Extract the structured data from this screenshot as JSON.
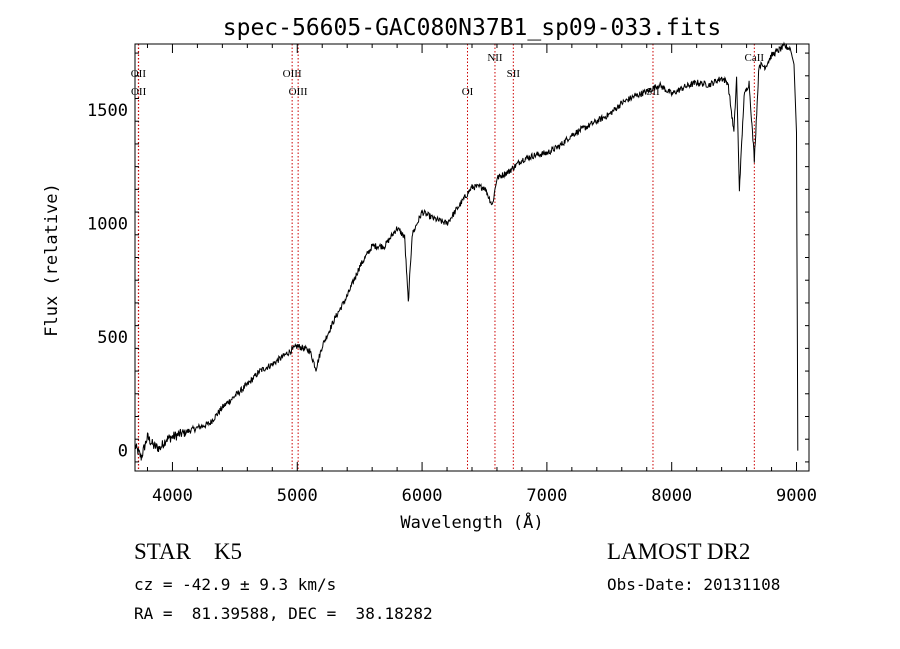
{
  "chart_data": {
    "type": "line",
    "title": "spec-56605-GAC080N37B1_sp09-033.fits",
    "xlabel": "Wavelength (Å)",
    "ylabel": "Flux (relative)",
    "xlim": [
      3700,
      9100
    ],
    "ylim": [
      -90,
      1790
    ],
    "xticks": [
      4000,
      5000,
      6000,
      7000,
      8000,
      9000
    ],
    "xtick_labels": [
      "4000",
      "5000",
      "6000",
      "7000",
      "8000",
      "9000"
    ],
    "yticks": [
      0,
      500,
      1000,
      1500
    ],
    "ytick_labels": [
      "0",
      "500",
      "1000",
      "1500"
    ],
    "series": [
      {
        "name": "spectrum",
        "color": "#000000",
        "x": [
          3700,
          3750,
          3800,
          3850,
          3900,
          3950,
          4000,
          4100,
          4200,
          4300,
          4400,
          4500,
          4600,
          4700,
          4800,
          4900,
          5000,
          5100,
          5150,
          5200,
          5300,
          5400,
          5500,
          5600,
          5700,
          5800,
          5860,
          5890,
          5920,
          6000,
          6100,
          6200,
          6300,
          6400,
          6500,
          6563,
          6600,
          6700,
          6800,
          6900,
          7000,
          7100,
          7200,
          7300,
          7400,
          7500,
          7600,
          7700,
          7800,
          7900,
          8000,
          8100,
          8200,
          8300,
          8400,
          8450,
          8498,
          8520,
          8542,
          8580,
          8620,
          8662,
          8700,
          8750,
          8800,
          8850,
          8900,
          8950,
          8980,
          9000,
          9010
        ],
        "y": [
          20,
          -30,
          60,
          20,
          10,
          50,
          60,
          80,
          100,
          120,
          190,
          240,
          290,
          350,
          380,
          420,
          460,
          440,
          360,
          460,
          580,
          680,
          810,
          900,
          900,
          980,
          940,
          650,
          950,
          1050,
          1020,
          1000,
          1080,
          1160,
          1160,
          1080,
          1200,
          1230,
          1280,
          1300,
          1310,
          1340,
          1390,
          1420,
          1450,
          1480,
          1530,
          1560,
          1580,
          1610,
          1570,
          1600,
          1620,
          1610,
          1640,
          1620,
          1400,
          1640,
          1150,
          1560,
          1620,
          1280,
          1700,
          1690,
          1740,
          1760,
          1780,
          1770,
          1700,
          1400,
          0
        ]
      }
    ],
    "lines": [
      {
        "label": "OII",
        "x": 3727,
        "row": 1
      },
      {
        "label": "OII",
        "x": 3729,
        "row": 2
      },
      {
        "label": "OIII",
        "x": 4959,
        "row": 1
      },
      {
        "label": "OIII",
        "x": 5007,
        "row": 2
      },
      {
        "label": "OI",
        "x": 6364,
        "row": 2
      },
      {
        "label": "NII",
        "x": 6584,
        "row": 0
      },
      {
        "label": "SII",
        "x": 6731,
        "row": 1
      },
      {
        "label": "SII",
        "x": 7850,
        "row": 2
      },
      {
        "label": "CaII",
        "x": 8662,
        "row": 0
      }
    ],
    "line_color": "#cc0000"
  },
  "info": {
    "obj_class": "STAR    K5",
    "survey": "LAMOST DR2",
    "cz": "cz = -42.9 ± 9.3 km/s",
    "obs_date": "Obs-Date: 20131108",
    "coords": "RA =  81.39588, DEC =  38.18282"
  }
}
